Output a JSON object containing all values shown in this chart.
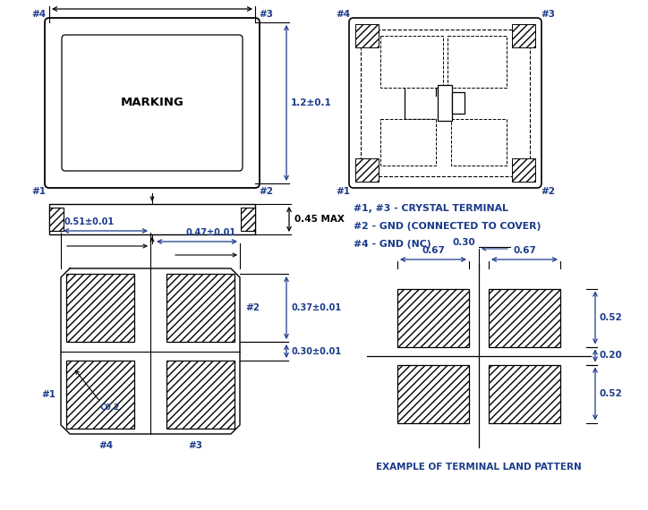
{
  "bg_color": "#ffffff",
  "line_color": "#000000",
  "dim_color": "#1a3a8a",
  "fig_w": 7.24,
  "fig_h": 5.7,
  "pin_labels": {
    "line1": "#1, #3 - CRYSTAL TERMINAL",
    "line2": "#2 - GND (CONNECTED TO COVER)",
    "line3": "#4 - GND (NC)"
  }
}
